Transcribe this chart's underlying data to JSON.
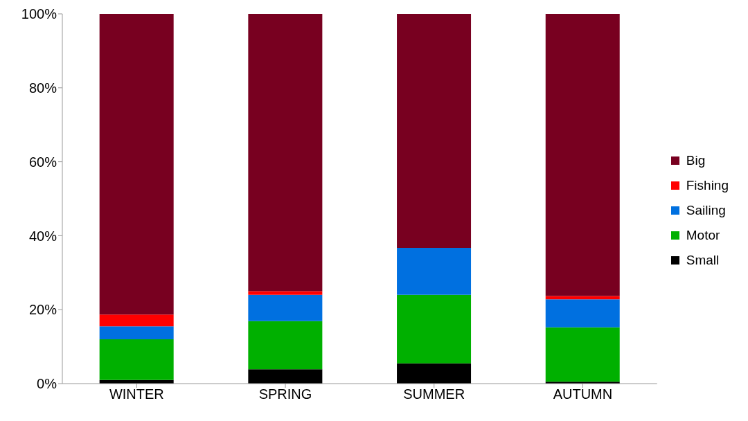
{
  "chart_data": {
    "type": "bar",
    "stacked": true,
    "categories": [
      "WINTER",
      "SPRING",
      "SUMMER",
      "AUTUMN"
    ],
    "series": [
      {
        "name": "Small",
        "color": "#000000",
        "values": [
          1,
          3.9,
          5.5,
          0.5
        ]
      },
      {
        "name": "Motor",
        "color": "#00b000",
        "values": [
          11,
          13,
          18.5,
          14.7
        ]
      },
      {
        "name": "Sailing",
        "color": "#0070e0",
        "values": [
          3.5,
          7.1,
          12.7,
          7.6
        ]
      },
      {
        "name": "Fishing",
        "color": "#ff0000",
        "values": [
          3.2,
          1,
          0,
          0.9
        ]
      },
      {
        "name": "Big",
        "color": "#780020",
        "values": [
          81.3,
          75,
          63.3,
          76.3
        ]
      }
    ],
    "ylim": [
      0,
      100
    ],
    "yticks": [
      {
        "value": 0,
        "label": "0%"
      },
      {
        "value": 20,
        "label": "20%"
      },
      {
        "value": 40,
        "label": "40%"
      },
      {
        "value": 60,
        "label": "60%"
      },
      {
        "value": 80,
        "label": "80%"
      },
      {
        "value": 100,
        "label": "100%"
      }
    ],
    "grid": false,
    "legend": "right"
  }
}
